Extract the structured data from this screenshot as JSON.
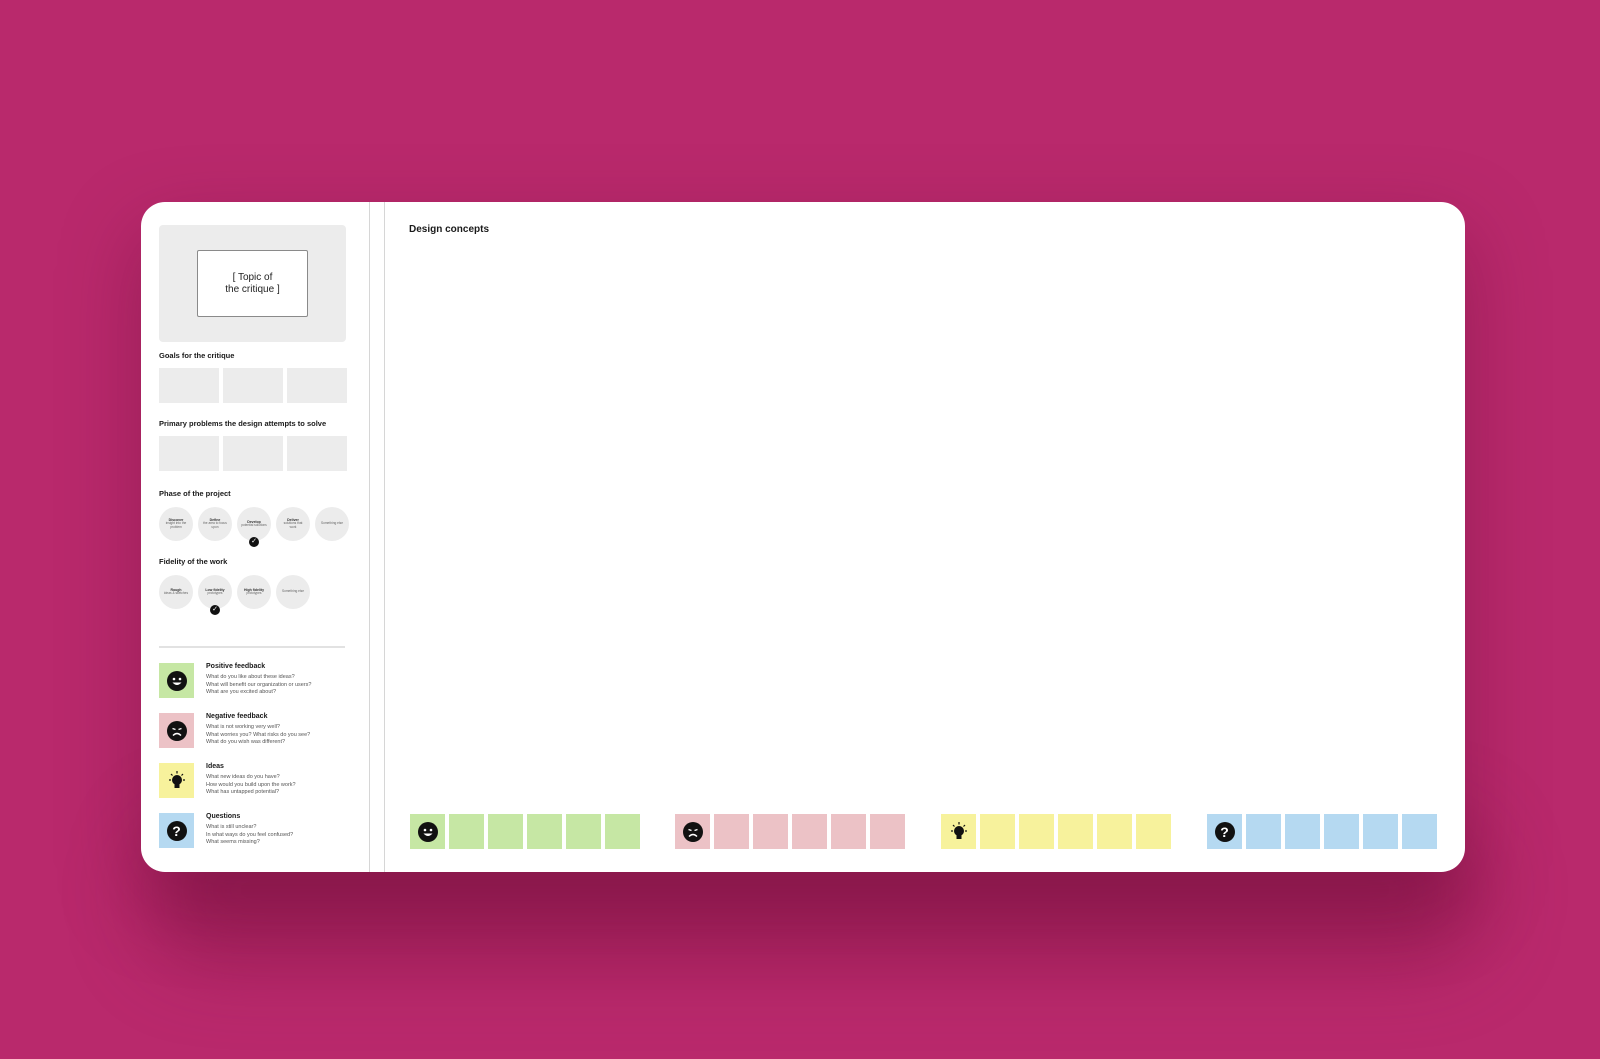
{
  "colors": {
    "background": "#b9296c",
    "positive": "#c6e7a4",
    "negative": "#ecc2c6",
    "ideas": "#f7f29c",
    "questions": "#b5d9f1"
  },
  "topic": {
    "text": "[ Topic of\nthe critique ]"
  },
  "goals": {
    "title": "Goals for the critique"
  },
  "problems": {
    "title": "Primary problems the design attempts to solve"
  },
  "phase": {
    "title": "Phase of the project",
    "items": [
      {
        "title": "Discover",
        "sub": "insight into the problem",
        "checked": false
      },
      {
        "title": "Define",
        "sub": "the area to focus upon",
        "checked": false
      },
      {
        "title": "Develop",
        "sub": "potential solutions",
        "checked": true
      },
      {
        "title": "Deliver",
        "sub": "solutions that work",
        "checked": false
      },
      {
        "title": "",
        "sub": "Something else",
        "checked": false
      }
    ]
  },
  "fidelity": {
    "title": "Fidelity of the work",
    "items": [
      {
        "title": "Rough",
        "sub": "ideas & sketches",
        "checked": false
      },
      {
        "title": "Low fidelity",
        "sub": "prototypes",
        "checked": true
      },
      {
        "title": "High fidelity",
        "sub": "prototypes",
        "checked": false
      },
      {
        "title": "",
        "sub": "Something else",
        "checked": false
      }
    ]
  },
  "legend": {
    "positive": {
      "title": "Positive feedback",
      "questions": "What do you like about these ideas?\nWhat will benefit our organization or users?\nWhat are you excited about?",
      "icon": "smile-icon"
    },
    "negative": {
      "title": "Negative feedback",
      "questions": "What is not working very well?\nWhat worries you? What risks do you see?\nWhat do you wish was different?",
      "icon": "frown-icon"
    },
    "ideas": {
      "title": "Ideas",
      "questions": "What new ideas do you have?\nHow would you build upon the work?\nWhat has untapped potential?",
      "icon": "lightbulb-icon"
    },
    "questions": {
      "title": "Questions",
      "questions": "What is still unclear?\nIn what ways do you feel confused?\nWhat seems missing?",
      "icon": "question-icon"
    }
  },
  "main": {
    "title": "Design concepts"
  },
  "sticky_groups": [
    {
      "kind": "positive",
      "icon": "smile-icon",
      "blank_count": 5
    },
    {
      "kind": "negative",
      "icon": "frown-icon",
      "blank_count": 5
    },
    {
      "kind": "ideas",
      "icon": "lightbulb-icon",
      "blank_count": 5
    },
    {
      "kind": "questions",
      "icon": "question-icon",
      "blank_count": 5
    }
  ]
}
